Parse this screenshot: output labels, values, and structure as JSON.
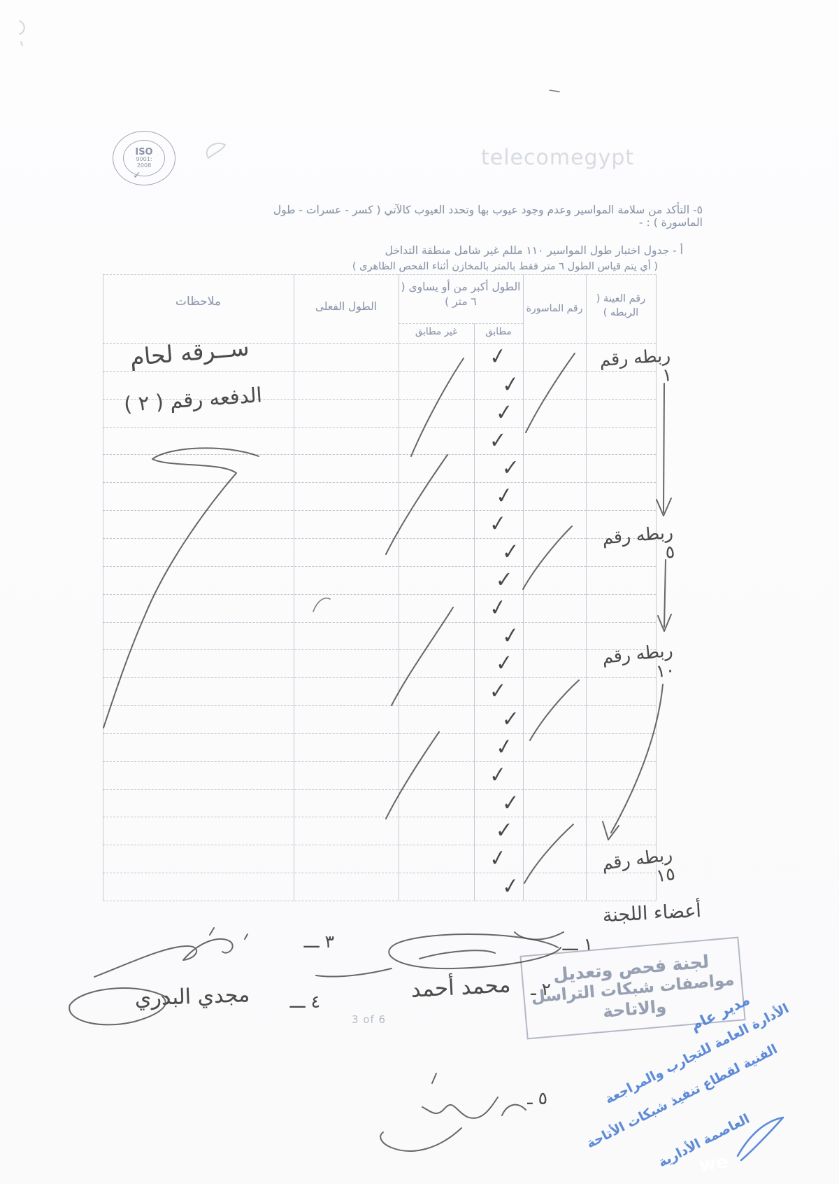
{
  "page": {
    "page_number": "3 of 6"
  },
  "header": {
    "watermark": "telecomegypt",
    "iso_stamp": {
      "line1": "ISO",
      "line2": "9001:",
      "line3": "2008",
      "check": "✓"
    }
  },
  "intro": {
    "item5": "٥- التأكد من سلامة المواسير وعدم وجود عيوب بها وتحدد العيوب كالآتي ( كسر - عسرات - طول الماسورة ) : -",
    "item_a": "أ - جدول اختبار طول المواسير ١١٠ مللم غير شامل منطقة التداخل",
    "item_a_note": "( أي يتم قياس الطول ٦ متر فقط بالمتر بالمخازن أثناء الفحص الظاهرى )"
  },
  "table": {
    "headers": {
      "notes": "ملاحظات",
      "actual_length": "الطول الفعلى",
      "length_group": "الطول أكبر من أو يساوى ( ٦ متر )",
      "non_conforming": "غير مطابق",
      "conforming": "مطابق",
      "pipe_no": "رقم الماسورة",
      "sample_no": "رقم العينة ( الربطه )"
    },
    "check_glyph": "✓",
    "rows": [
      {
        "conforming_check": true
      },
      {
        "conforming_check": true
      },
      {
        "conforming_check": true
      },
      {
        "conforming_check": true
      },
      {
        "conforming_check": true
      },
      {
        "conforming_check": true
      },
      {
        "conforming_check": true
      },
      {
        "conforming_check": true
      },
      {
        "conforming_check": true
      },
      {
        "conforming_check": true
      },
      {
        "conforming_check": true
      },
      {
        "conforming_check": true
      },
      {
        "conforming_check": true
      },
      {
        "conforming_check": true
      },
      {
        "conforming_check": true
      },
      {
        "conforming_check": true
      },
      {
        "conforming_check": true
      },
      {
        "conforming_check": true
      },
      {
        "conforming_check": true
      },
      {
        "conforming_check": true
      }
    ],
    "bundle_labels": [
      "ربطه رقم ١",
      "ربطه رقم ٥",
      "ربطه رقم ١٠",
      "ربطه رقم ١٥"
    ],
    "notes_handwritten": {
      "note1": "ســرقه لحام",
      "note2": "الدفعه رقم ( ٢ )"
    }
  },
  "footer": {
    "committee_heading": "أعضاء اللجنة",
    "signatures": [
      {
        "no": "١ ـــ",
        "name": ""
      },
      {
        "no": "٢ ـ",
        "name": "محمد أحمد"
      },
      {
        "no": "٣ ـــ",
        "name": ""
      },
      {
        "no": "٤ ـــ",
        "name": "مجدي البدري"
      },
      {
        "no": "٥ ـ",
        "name": ""
      }
    ],
    "grey_stamp": {
      "line1": "لجنة فحص وتعديل",
      "line2": "مواصفات شبكات التراسل",
      "line3": "والاتاحة"
    },
    "blue_stamp": {
      "line1": "مدير عام",
      "line2": "الأدارة العامة للتجارب والمراجعة",
      "line3": "الفنية لقطاع تنفيذ شبكات الأتاحة",
      "line4": "العاصمة الأدارية"
    },
    "we_logo": "we",
    "page_number": "3 of 6"
  },
  "colors": {
    "print_text": "#8d97ab",
    "pencil_ink": "#4c4c4c",
    "stamp_grey": "#97a0b2",
    "stamp_blue": "#4d80d4",
    "watermark": "#d8dbe1",
    "grid_line": "#828da5"
  }
}
